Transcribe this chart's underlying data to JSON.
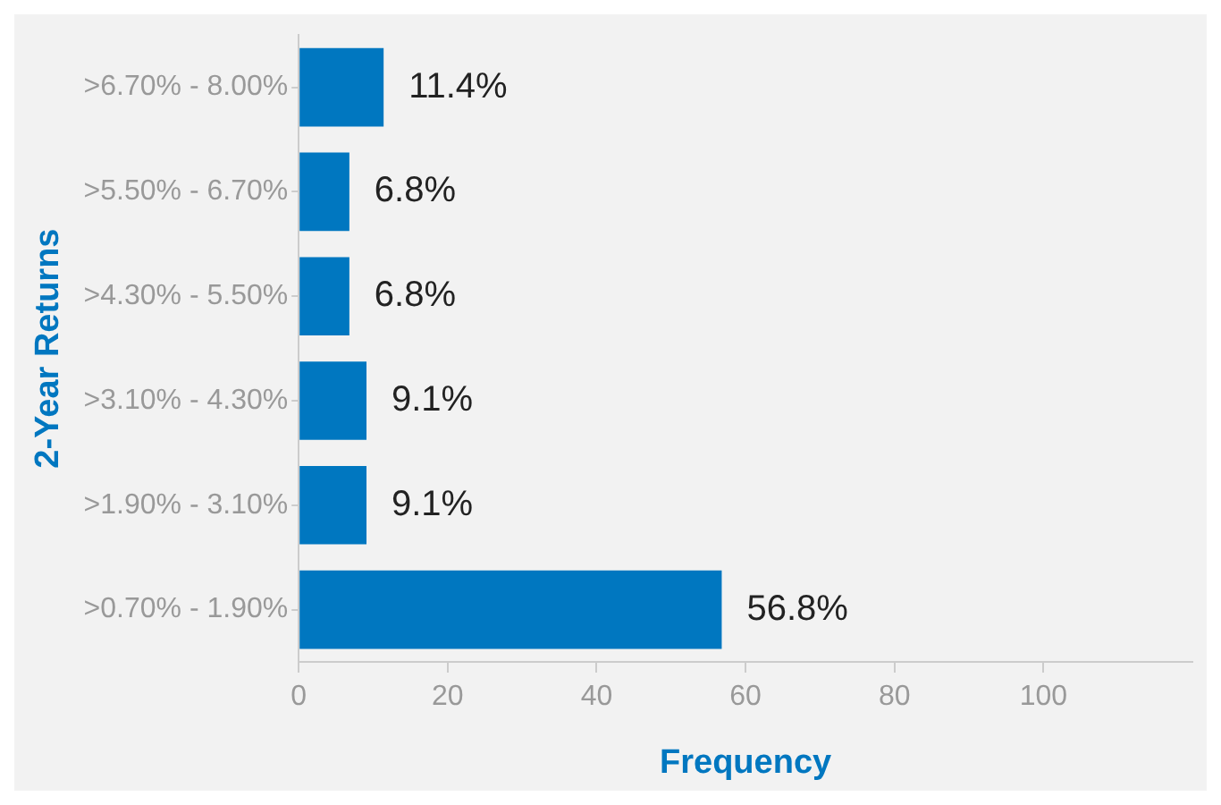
{
  "chart_data": {
    "type": "bar",
    "orientation": "horizontal",
    "xlabel": "Frequency",
    "ylabel": "2-Year Returns",
    "categories": [
      ">6.70% - 8.00%",
      ">5.50% - 6.70%",
      ">4.30% - 5.50%",
      ">3.10% - 4.30%",
      ">1.90% - 3.10%",
      ">0.70% - 1.90%"
    ],
    "values": [
      11.4,
      6.8,
      6.8,
      9.1,
      9.1,
      56.8
    ],
    "value_labels": [
      "11.4%",
      "6.8%",
      "6.8%",
      "9.1%",
      "9.1%",
      "56.8%"
    ],
    "color": "#0077c0",
    "xlim": [
      0,
      120
    ],
    "xticks": [
      0,
      20,
      40,
      60,
      80,
      100
    ]
  }
}
